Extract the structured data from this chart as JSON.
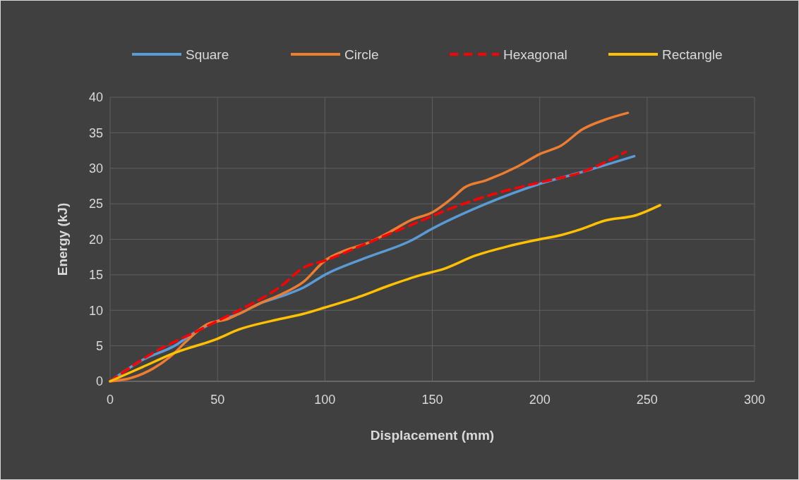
{
  "chart_data": {
    "type": "line",
    "xlabel": "Displacement (mm)",
    "ylabel": "Energy (kJ)",
    "xlim": [
      0,
      300
    ],
    "xticks": [
      0,
      50,
      100,
      150,
      200,
      250,
      300
    ],
    "ylim": [
      0,
      40
    ],
    "yticks": [
      0,
      5,
      10,
      15,
      20,
      25,
      30,
      35,
      40
    ],
    "grid": true,
    "legend": "top",
    "series": [
      {
        "name": "Square",
        "color": "#5b9bd5",
        "line_style": "solid",
        "x": [
          0,
          15,
          30,
          40,
          50,
          60,
          70,
          80,
          90,
          100,
          120,
          140,
          150,
          175,
          200,
          220,
          244
        ],
        "values": [
          0,
          3,
          5,
          7,
          8.5,
          9.5,
          11,
          12,
          13.2,
          15,
          17.5,
          19.8,
          21.5,
          25,
          27.8,
          29.5,
          31.7
        ]
      },
      {
        "name": "Circle",
        "color": "#ed7d31",
        "line_style": "solid",
        "x": [
          0,
          10,
          20,
          30,
          35,
          45,
          55,
          60,
          70,
          80,
          90,
          100,
          110,
          120,
          130,
          140,
          150,
          160,
          165,
          175,
          190,
          200,
          210,
          220,
          230,
          241
        ],
        "values": [
          0,
          0.5,
          1.8,
          4,
          5.5,
          8,
          8.8,
          9.5,
          11,
          12.3,
          14,
          17,
          18.5,
          19.5,
          21,
          22.7,
          23.8,
          26,
          27.3,
          28.3,
          30.3,
          32,
          33.2,
          35.5,
          36.8,
          37.8
        ]
      },
      {
        "name": "Hexagonal",
        "color": "#ff0000",
        "line_style": "dashed",
        "x": [
          0,
          20,
          40,
          50,
          60,
          80,
          90,
          100,
          120,
          140,
          160,
          180,
          200,
          220,
          240
        ],
        "values": [
          0,
          4,
          7,
          8.5,
          10,
          13.5,
          16,
          17,
          19.5,
          22,
          24.5,
          26.5,
          28,
          29.5,
          32.3
        ]
      },
      {
        "name": "Rectangle",
        "color": "#ffc000",
        "line_style": "solid",
        "x": [
          0,
          15,
          30,
          50,
          60,
          75,
          90,
          100,
          115,
          130,
          145,
          155,
          170,
          185,
          200,
          210,
          220,
          230,
          245,
          256
        ],
        "values": [
          0,
          2,
          4,
          6,
          7.3,
          8.5,
          9.5,
          10.4,
          11.8,
          13.5,
          15,
          15.8,
          17.7,
          19,
          20,
          20.6,
          21.5,
          22.6,
          23.4,
          24.8
        ]
      }
    ]
  }
}
